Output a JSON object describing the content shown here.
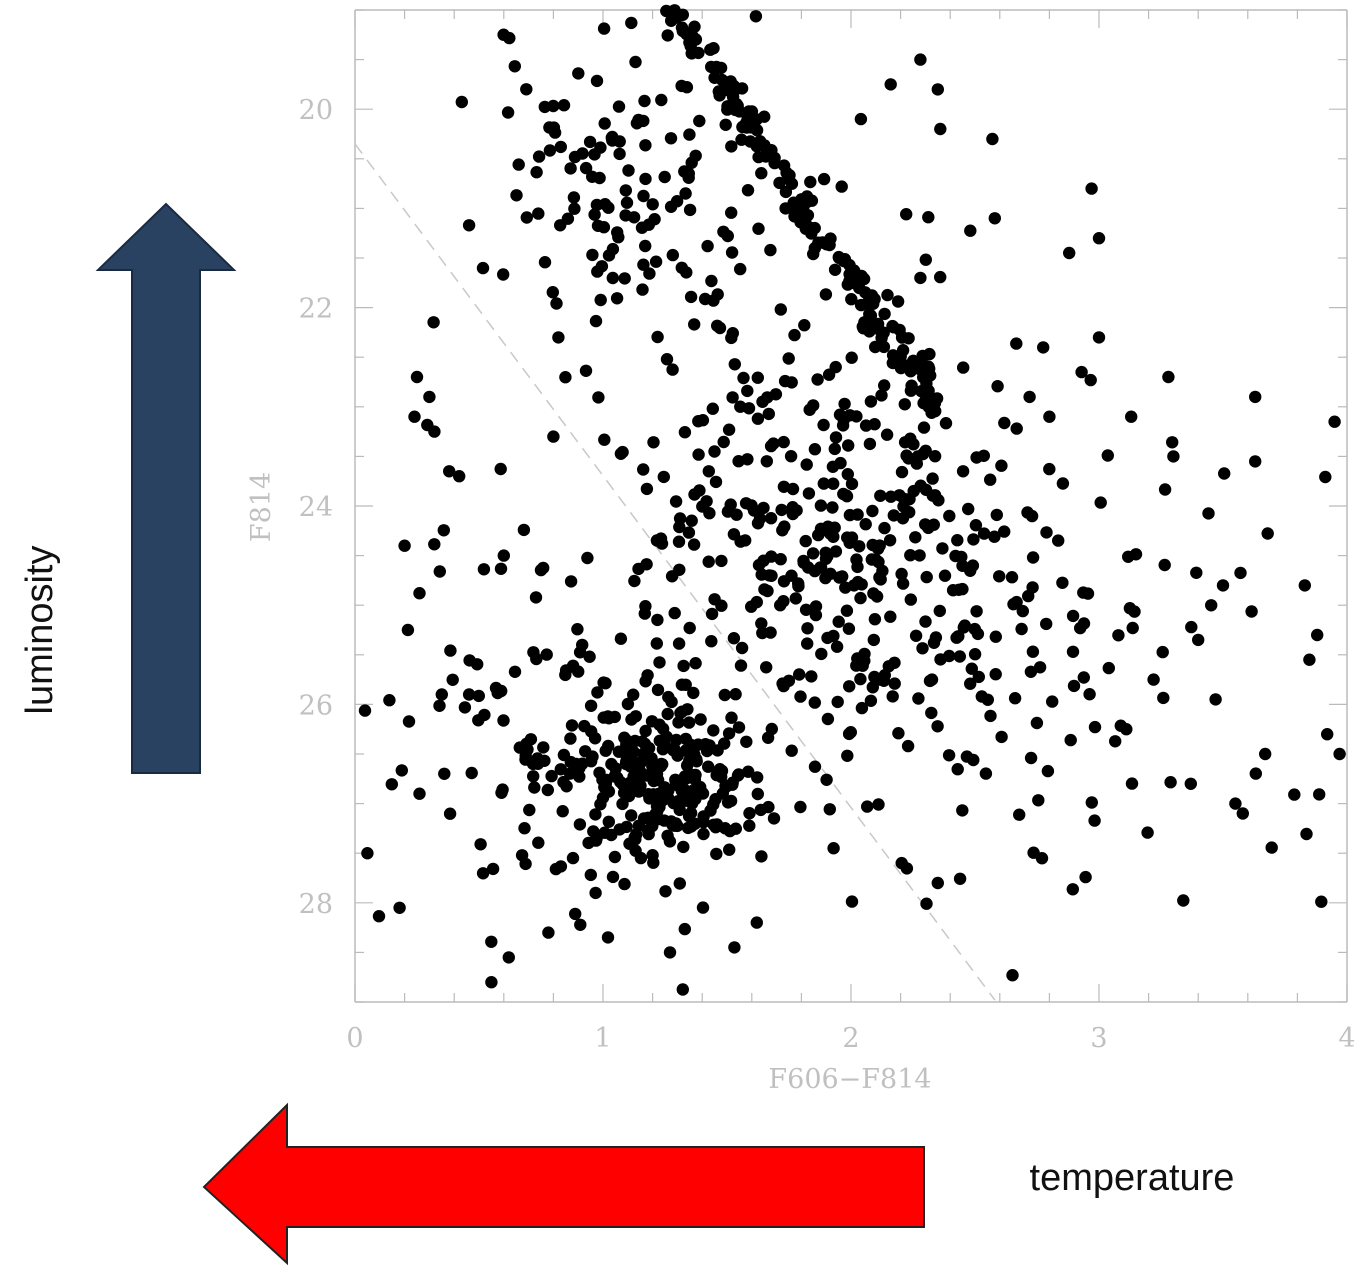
{
  "chart_data": {
    "type": "scatter",
    "title": "",
    "xlabel": "F606−F814",
    "ylabel": "F814",
    "xlim": [
      0,
      4
    ],
    "ylim": [
      29.0,
      19.0
    ],
    "y_inverted": true,
    "x_ticks": [
      0,
      1,
      2,
      3,
      4
    ],
    "x_tick_labels": [
      "0",
      "1",
      "2",
      "3",
      "4"
    ],
    "y_ticks": [
      20,
      22,
      24,
      26,
      28
    ],
    "y_tick_labels": [
      "20",
      "22",
      "24",
      "26",
      "28"
    ],
    "grid": false,
    "legend": "none",
    "dashed_line": {
      "from": [
        0.0,
        20.35
      ],
      "to": [
        2.58,
        28.98
      ]
    },
    "colors": {
      "points": "#000000",
      "axis": "#bbbbbb",
      "luminosity_arrow": "#2a4262",
      "temperature_arrow": "#ff0000"
    },
    "series": [
      {
        "clusters": [
          {
            "kind": "line",
            "from": [
              1.27,
              19.0
            ],
            "to": [
              2.35,
              23.0
            ],
            "n": 170,
            "width": 0.04
          },
          {
            "kind": "ellipse",
            "center": [
              1.2,
              26.8
            ],
            "sx": 0.2,
            "sy": 0.45,
            "n": 240
          },
          {
            "kind": "ellipse",
            "center": [
              1.9,
              24.2
            ],
            "sx": 0.4,
            "sy": 1.2,
            "n": 380
          },
          {
            "kind": "ellipse",
            "center": [
              1.05,
              20.8
            ],
            "sx": 0.28,
            "sy": 0.8,
            "n": 130
          },
          {
            "kind": "ellipse",
            "center": [
              0.75,
              26.3
            ],
            "sx": 0.35,
            "sy": 1.2,
            "n": 110
          },
          {
            "kind": "ellipse",
            "center": [
              2.6,
              25.6
            ],
            "sx": 0.35,
            "sy": 1.2,
            "n": 90
          },
          {
            "kind": "ellipse",
            "center": [
              3.4,
              25.2
            ],
            "sx": 0.45,
            "sy": 1.4,
            "n": 35
          }
        ],
        "points": [
          [
            0.05,
            27.5
          ],
          [
            0.18,
            28.05
          ],
          [
            0.2,
            24.4
          ],
          [
            0.24,
            23.1
          ],
          [
            0.25,
            22.7
          ],
          [
            0.3,
            22.9
          ],
          [
            0.32,
            23.25
          ],
          [
            0.35,
            25.9
          ],
          [
            0.38,
            23.65
          ],
          [
            0.42,
            23.7
          ],
          [
            0.46,
            25.9
          ],
          [
            0.55,
            28.8
          ],
          [
            0.62,
            28.55
          ],
          [
            0.36,
            26.7
          ],
          [
            0.26,
            26.9
          ],
          [
            0.8,
            23.3
          ],
          [
            0.82,
            22.3
          ],
          [
            0.6,
            24.5
          ],
          [
            3.0,
            22.3
          ],
          [
            3.0,
            21.3
          ],
          [
            2.97,
            20.8
          ],
          [
            3.13,
            23.1
          ],
          [
            3.28,
            22.7
          ],
          [
            3.3,
            23.5
          ],
          [
            3.63,
            22.9
          ],
          [
            3.63,
            23.55
          ],
          [
            3.95,
            23.15
          ],
          [
            3.5,
            24.8
          ],
          [
            3.4,
            25.35
          ],
          [
            3.83,
            24.8
          ],
          [
            3.88,
            25.3
          ],
          [
            3.92,
            26.3
          ],
          [
            3.97,
            26.5
          ],
          [
            3.67,
            26.5
          ],
          [
            3.55,
            27.0
          ],
          [
            3.58,
            27.1
          ],
          [
            3.47,
            25.95
          ],
          [
            3.37,
            26.8
          ],
          [
            3.22,
            25.75
          ],
          [
            3.11,
            26.25
          ],
          [
            2.77,
            27.55
          ],
          [
            2.35,
            27.8
          ],
          [
            2.28,
            19.5
          ],
          [
            2.35,
            19.8
          ],
          [
            2.16,
            19.75
          ],
          [
            2.57,
            20.3
          ],
          [
            2.04,
            20.1
          ],
          [
            2.36,
            20.2
          ],
          [
            1.27,
            28.5
          ],
          [
            1.53,
            28.45
          ],
          [
            1.62,
            28.2
          ],
          [
            0.97,
            27.9
          ],
          [
            0.78,
            28.3
          ],
          [
            1.93,
            27.45
          ],
          [
            2.88,
            21.45
          ],
          [
            2.93,
            22.65
          ],
          [
            2.58,
            21.1
          ],
          [
            2.72,
            22.9
          ],
          [
            2.8,
            23.1
          ]
        ]
      }
    ]
  },
  "annotations": {
    "luminosity": "luminosity",
    "temperature": "temperature"
  }
}
